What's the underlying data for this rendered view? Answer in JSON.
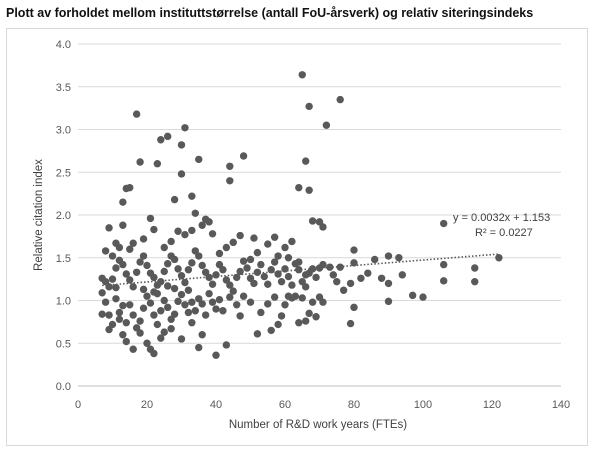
{
  "title": "Plott av forholdet mellom instituttstørrelse (antall FoU-årsverk) og relativ siteringsindeks",
  "chart_data": {
    "type": "scatter",
    "xlabel": "Number of R&D work years (FTEs)",
    "ylabel": "Relative citation index",
    "xlim": [
      0,
      140
    ],
    "ylim": [
      0,
      4.0
    ],
    "x_ticks": [
      "0",
      "20",
      "40",
      "60",
      "80",
      "100",
      "120",
      "140"
    ],
    "y_ticks": [
      "0.0",
      "0.5",
      "1.0",
      "1.5",
      "2.0",
      "2.5",
      "3.0",
      "3.5",
      "4.0"
    ],
    "grid": "horizontal",
    "marker_color": "#595959",
    "trendline": {
      "type": "linear",
      "slope": 0.0032,
      "intercept": 1.153,
      "equation": "y = 0.0032x + 1.153",
      "r_squared": "R² = 0.0227",
      "style": "dotted"
    },
    "points": [
      [
        17,
        3.18
      ],
      [
        24,
        2.88
      ],
      [
        26,
        2.92
      ],
      [
        31,
        3.02
      ],
      [
        30,
        2.82
      ],
      [
        18,
        2.62
      ],
      [
        23,
        2.6
      ],
      [
        35,
        2.65
      ],
      [
        13,
        2.15
      ],
      [
        14,
        2.31
      ],
      [
        15,
        2.32
      ],
      [
        28,
        2.18
      ],
      [
        33,
        2.22
      ],
      [
        30,
        2.48
      ],
      [
        44,
        2.57
      ],
      [
        44,
        2.4
      ],
      [
        48,
        2.69
      ],
      [
        65,
        3.64
      ],
      [
        67,
        3.27
      ],
      [
        76,
        3.35
      ],
      [
        72,
        3.05
      ],
      [
        66,
        2.63
      ],
      [
        67,
        2.29
      ],
      [
        64,
        2.32
      ],
      [
        68,
        1.93
      ],
      [
        70,
        1.92
      ],
      [
        71,
        1.86
      ],
      [
        106,
        1.9
      ],
      [
        122,
        1.5
      ],
      [
        115,
        1.38
      ],
      [
        115,
        1.22
      ],
      [
        106,
        1.42
      ],
      [
        106,
        1.23
      ],
      [
        100,
        1.04
      ],
      [
        97,
        1.06
      ],
      [
        94,
        1.3
      ],
      [
        93,
        1.5
      ],
      [
        90,
        1.52
      ],
      [
        88,
        1.26
      ],
      [
        90,
        1.2
      ],
      [
        90,
        0.99
      ],
      [
        86,
        1.48
      ],
      [
        84,
        1.32
      ],
      [
        80,
        1.59
      ],
      [
        80,
        1.44
      ],
      [
        79,
        1.2
      ],
      [
        80,
        0.92
      ],
      [
        79,
        0.73
      ],
      [
        82,
        1.26
      ],
      [
        76,
        1.39
      ],
      [
        73,
        1.39
      ],
      [
        70,
        1.38
      ],
      [
        68,
        1.37
      ],
      [
        66,
        1.3
      ],
      [
        64,
        1.45
      ],
      [
        61,
        1.5
      ],
      [
        58,
        1.52
      ],
      [
        60,
        1.62
      ],
      [
        62,
        1.69
      ],
      [
        57,
        1.74
      ],
      [
        55,
        1.66
      ],
      [
        52,
        1.56
      ],
      [
        50,
        1.48
      ],
      [
        51,
        1.73
      ],
      [
        47,
        1.76
      ],
      [
        45,
        1.68
      ],
      [
        43,
        1.62
      ],
      [
        41,
        1.55
      ],
      [
        39,
        1.78
      ],
      [
        38,
        1.92
      ],
      [
        37,
        1.95
      ],
      [
        36,
        1.88
      ],
      [
        34,
        2.02
      ],
      [
        33,
        1.82
      ],
      [
        31,
        1.77
      ],
      [
        29,
        1.81
      ],
      [
        27,
        1.69
      ],
      [
        25,
        1.62
      ],
      [
        22,
        1.83
      ],
      [
        21,
        1.96
      ],
      [
        19,
        1.72
      ],
      [
        16,
        1.67
      ],
      [
        15,
        1.6
      ],
      [
        13,
        1.88
      ],
      [
        11,
        1.67
      ],
      [
        9,
        1.85
      ],
      [
        8,
        1.58
      ],
      [
        7,
        1.26
      ],
      [
        8,
        1.22
      ],
      [
        7,
        1.09
      ],
      [
        9,
        1.16
      ],
      [
        10,
        1.25
      ],
      [
        11,
        1.38
      ],
      [
        12,
        1.47
      ],
      [
        10,
        1.52
      ],
      [
        12,
        1.62
      ],
      [
        13,
        1.42
      ],
      [
        14,
        1.31
      ],
      [
        15,
        1.24
      ],
      [
        16,
        1.16
      ],
      [
        17,
        1.33
      ],
      [
        18,
        1.45
      ],
      [
        19,
        1.52
      ],
      [
        20,
        1.41
      ],
      [
        21,
        1.32
      ],
      [
        22,
        1.27
      ],
      [
        23,
        1.18
      ],
      [
        24,
        1.22
      ],
      [
        25,
        1.34
      ],
      [
        26,
        1.43
      ],
      [
        27,
        1.52
      ],
      [
        28,
        1.48
      ],
      [
        29,
        1.37
      ],
      [
        30,
        1.29
      ],
      [
        31,
        1.21
      ],
      [
        32,
        1.36
      ],
      [
        33,
        1.44
      ],
      [
        34,
        1.58
      ],
      [
        35,
        1.52
      ],
      [
        36,
        1.41
      ],
      [
        37,
        1.33
      ],
      [
        38,
        1.27
      ],
      [
        39,
        1.19
      ],
      [
        40,
        1.3
      ],
      [
        41,
        1.42
      ],
      [
        42,
        1.36
      ],
      [
        43,
        1.24
      ],
      [
        44,
        1.18
      ],
      [
        45,
        1.11
      ],
      [
        46,
        1.27
      ],
      [
        47,
        1.34
      ],
      [
        48,
        1.46
      ],
      [
        49,
        1.38
      ],
      [
        50,
        1.26
      ],
      [
        51,
        1.2
      ],
      [
        52,
        1.33
      ],
      [
        53,
        1.42
      ],
      [
        54,
        1.28
      ],
      [
        55,
        1.19
      ],
      [
        56,
        1.36
      ],
      [
        57,
        1.45
      ],
      [
        58,
        1.31
      ],
      [
        59,
        1.22
      ],
      [
        60,
        1.37
      ],
      [
        61,
        1.28
      ],
      [
        62,
        1.18
      ],
      [
        63,
        1.43
      ],
      [
        64,
        1.36
      ],
      [
        65,
        1.22
      ],
      [
        66,
        1.16
      ],
      [
        67,
        1.32
      ],
      [
        69,
        1.27
      ],
      [
        71,
        1.42
      ],
      [
        74,
        1.3
      ],
      [
        75,
        1.22
      ],
      [
        77,
        1.12
      ],
      [
        8,
        0.98
      ],
      [
        9,
        0.83
      ],
      [
        10,
        0.72
      ],
      [
        11,
        1.02
      ],
      [
        12,
        0.86
      ],
      [
        13,
        0.94
      ],
      [
        14,
        0.74
      ],
      [
        15,
        0.95
      ],
      [
        16,
        0.83
      ],
      [
        17,
        0.68
      ],
      [
        18,
        0.76
      ],
      [
        19,
        0.91
      ],
      [
        20,
        1.05
      ],
      [
        21,
        0.97
      ],
      [
        22,
        0.83
      ],
      [
        23,
        0.72
      ],
      [
        24,
        0.88
      ],
      [
        25,
        1.0
      ],
      [
        26,
        0.92
      ],
      [
        27,
        0.78
      ],
      [
        28,
        0.84
      ],
      [
        29,
        0.99
      ],
      [
        30,
        1.07
      ],
      [
        31,
        0.95
      ],
      [
        32,
        0.86
      ],
      [
        33,
        0.74
      ],
      [
        34,
        0.88
      ],
      [
        35,
        1.02
      ],
      [
        36,
        0.96
      ],
      [
        37,
        0.83
      ],
      [
        38,
        1.08
      ],
      [
        39,
        0.98
      ],
      [
        40,
        0.9
      ],
      [
        41,
        1.01
      ],
      [
        42,
        0.88
      ],
      [
        44,
        1.04
      ],
      [
        46,
        0.95
      ],
      [
        47,
        0.82
      ],
      [
        48,
        1.05
      ],
      [
        50,
        0.98
      ],
      [
        52,
        0.61
      ],
      [
        53,
        0.86
      ],
      [
        55,
        0.96
      ],
      [
        57,
        1.04
      ],
      [
        58,
        0.72
      ],
      [
        59,
        0.82
      ],
      [
        60,
        0.95
      ],
      [
        61,
        1.05
      ],
      [
        62,
        1.03
      ],
      [
        63,
        1.05
      ],
      [
        64,
        0.74
      ],
      [
        65,
        1.03
      ],
      [
        66,
        0.76
      ],
      [
        67,
        0.85
      ],
      [
        68,
        0.98
      ],
      [
        69,
        0.81
      ],
      [
        70,
        1.04
      ],
      [
        71,
        0.98
      ],
      [
        7,
        0.84
      ],
      [
        9,
        0.66
      ],
      [
        13,
        0.6
      ],
      [
        14,
        0.52
      ],
      [
        16,
        0.43
      ],
      [
        20,
        0.5
      ],
      [
        21,
        0.43
      ],
      [
        22,
        0.38
      ],
      [
        25,
        0.63
      ],
      [
        30,
        0.55
      ],
      [
        35,
        0.45
      ],
      [
        40,
        0.36
      ],
      [
        43,
        0.48
      ],
      [
        56,
        0.65
      ],
      [
        36,
        0.6
      ],
      [
        24,
        0.56
      ],
      [
        18,
        0.62
      ],
      [
        27,
        0.67
      ],
      [
        12,
        0.78
      ],
      [
        11,
        1.15
      ],
      [
        23,
        1.08
      ],
      [
        32,
        1.12
      ],
      [
        33,
        0.98
      ],
      [
        28,
        1.14
      ],
      [
        26,
        1.17
      ],
      [
        22,
        1.1
      ],
      [
        19,
        1.13
      ]
    ]
  }
}
